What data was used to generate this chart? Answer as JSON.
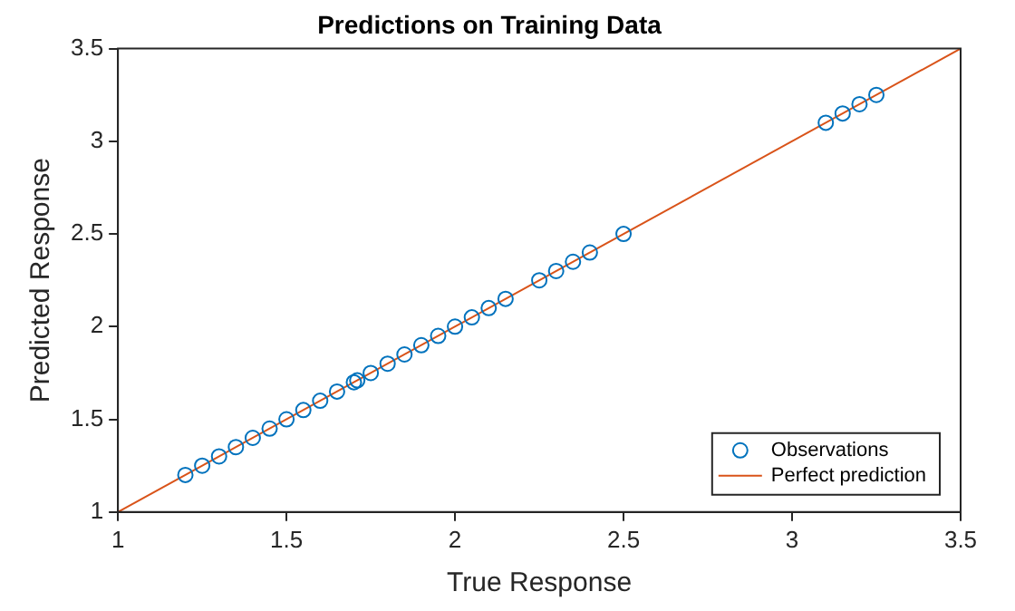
{
  "chart_data": {
    "type": "scatter",
    "title": "Predictions on Training Data",
    "xlabel": "True Response",
    "ylabel": "Predicted Response",
    "xlim": [
      1,
      3.5
    ],
    "xticks": [
      1,
      1.5,
      2,
      2.5,
      3,
      3.5
    ],
    "ylim": [
      1,
      3.5
    ],
    "yticks": [
      1,
      1.5,
      2,
      2.5,
      3,
      3.5
    ],
    "grid": false,
    "legend": "bottom right",
    "series": [
      {
        "name": "Observations",
        "marker": "circle",
        "color": "#0072bd",
        "x": [
          1.2,
          1.25,
          1.3,
          1.35,
          1.4,
          1.45,
          1.5,
          1.55,
          1.6,
          1.65,
          1.7,
          1.71,
          1.75,
          1.8,
          1.85,
          1.9,
          1.95,
          2.0,
          2.05,
          2.1,
          2.15,
          2.25,
          2.3,
          2.35,
          2.4,
          2.5,
          3.1,
          3.15,
          3.2,
          3.25
        ],
        "values": [
          1.2,
          1.25,
          1.3,
          1.35,
          1.4,
          1.45,
          1.5,
          1.55,
          1.6,
          1.65,
          1.7,
          1.71,
          1.75,
          1.8,
          1.85,
          1.9,
          1.95,
          2.0,
          2.05,
          2.1,
          2.15,
          2.25,
          2.3,
          2.35,
          2.4,
          2.5,
          3.1,
          3.15,
          3.2,
          3.25
        ]
      },
      {
        "name": "Perfect prediction",
        "type": "line",
        "marker": "none",
        "line_style": "solid",
        "color": "#d95319",
        "x": [
          1,
          3.5
        ],
        "values": [
          1,
          3.5
        ]
      }
    ]
  }
}
